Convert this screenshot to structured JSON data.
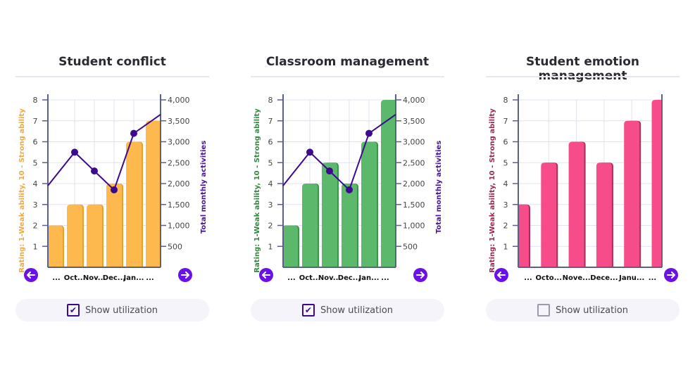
{
  "chart_data": [
    {
      "type": "bar",
      "title": "Student conflict",
      "categories": [
        "...",
        "Oct...",
        "Nov...",
        "Dec...",
        "Jan...",
        "..."
      ],
      "values": [
        2,
        3,
        3,
        4,
        6,
        7
      ],
      "ylabel": "Rating: 1-Weak ability, 10 - Strong ability",
      "ylim": [
        0,
        8
      ],
      "yticks": [
        "1",
        "2",
        "3",
        "4",
        "5",
        "6",
        "7",
        "8"
      ],
      "y2label": "Total monthly activities",
      "y2lim": [
        0,
        4000
      ],
      "y2ticks": [
        "500",
        "1,000",
        "1,500",
        "2,000",
        "2,500",
        "3,000",
        "3,500",
        "4,000"
      ],
      "line_values": [
        1950,
        2750,
        2300,
        1850,
        3200,
        3650
      ],
      "bar_color": "#FDB94E",
      "bar_shade": "#E5A035",
      "ylabel_color": "#F2A93B",
      "line_color": "#3B0A8F",
      "grid": true,
      "show_utilization": true,
      "checkbox_label": "Show utilization"
    },
    {
      "type": "bar",
      "title": "Classroom management",
      "categories": [
        "...",
        "Oct...",
        "Nov...",
        "Dec...",
        "Jan...",
        "..."
      ],
      "values": [
        2,
        4,
        5,
        4,
        6,
        8
      ],
      "ylabel": "Rating: 1-Weak ability, 10 - Strong ability",
      "ylim": [
        0,
        8
      ],
      "yticks": [
        "1",
        "2",
        "3",
        "4",
        "5",
        "6",
        "7",
        "8"
      ],
      "y2label": "Total monthly activities",
      "y2lim": [
        0,
        4000
      ],
      "y2ticks": [
        "500",
        "1,000",
        "1,500",
        "2,000",
        "2,500",
        "3,000",
        "3,500",
        "4,000"
      ],
      "line_values": [
        1950,
        2750,
        2300,
        1850,
        3200,
        3650
      ],
      "bar_color": "#5CB86B",
      "bar_shade": "#3E944C",
      "ylabel_color": "#2E8B3E",
      "line_color": "#3B0A8F",
      "grid": true,
      "show_utilization": true,
      "checkbox_label": "Show utilization"
    },
    {
      "type": "bar",
      "title": "Student emotion management",
      "categories": [
        "...",
        "Octo...",
        "Nove...",
        "Dece...",
        "Janu...",
        "..."
      ],
      "values": [
        3,
        5,
        6,
        5,
        7,
        8
      ],
      "ylabel": "Rating: 1-Weak ability, 10 - Strong ability",
      "ylim": [
        0,
        8
      ],
      "yticks": [
        "1",
        "2",
        "3",
        "4",
        "5",
        "6",
        "7",
        "8"
      ],
      "bar_color": "#F74C8A",
      "bar_shade": "#A82E5B",
      "ylabel_color": "#A3264F",
      "grid": true,
      "show_utilization": false,
      "checkbox_label": "Show utilization"
    }
  ],
  "colors": {
    "arrow": "#6A11E8",
    "axis": "#5B6088",
    "grid": "#DFE2F0",
    "right_axis_label": "#4A12A0"
  },
  "icons": {
    "prev": "arrow-left-icon",
    "next": "arrow-right-icon",
    "check": "checkmark-icon"
  }
}
